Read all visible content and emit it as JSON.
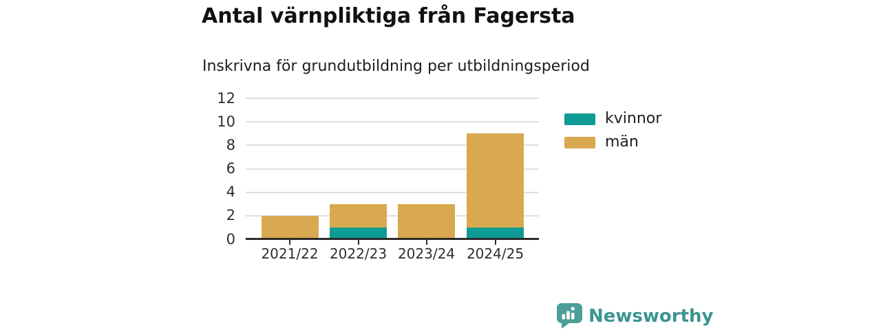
{
  "header": {
    "title": "Antal värnpliktiga från Fagersta",
    "subtitle": "Inskrivna för grundutbildning per utbildningsperiod"
  },
  "chart_data": {
    "type": "bar",
    "stacked": true,
    "title": "Antal värnpliktiga från Fagersta",
    "subtitle": "Inskrivna för grundutbildning per utbildningsperiod",
    "categories": [
      "2021/22",
      "2022/23",
      "2023/24",
      "2024/25"
    ],
    "series": [
      {
        "name": "kvinnor",
        "color": "#0e9b93",
        "values": [
          0,
          1,
          0,
          1
        ]
      },
      {
        "name": "män",
        "color": "#d8a950",
        "values": [
          2,
          2,
          3,
          8
        ]
      }
    ],
    "totals": [
      2,
      3,
      3,
      9
    ],
    "xlabel": "",
    "ylabel": "",
    "ylim": [
      0,
      12
    ],
    "yticks": [
      0,
      2,
      4,
      6,
      8,
      10,
      12
    ],
    "grid": "horizontal-only",
    "grid_color": "#dedede",
    "axis_color": "#2b2b2b",
    "legend_position": "right"
  },
  "footer": {
    "brand": "Newsworthy",
    "brand_color": "#3b948f",
    "logo_color": "#4c9e99",
    "logo_icon": "speech-bubble-bar-chart-icon"
  }
}
